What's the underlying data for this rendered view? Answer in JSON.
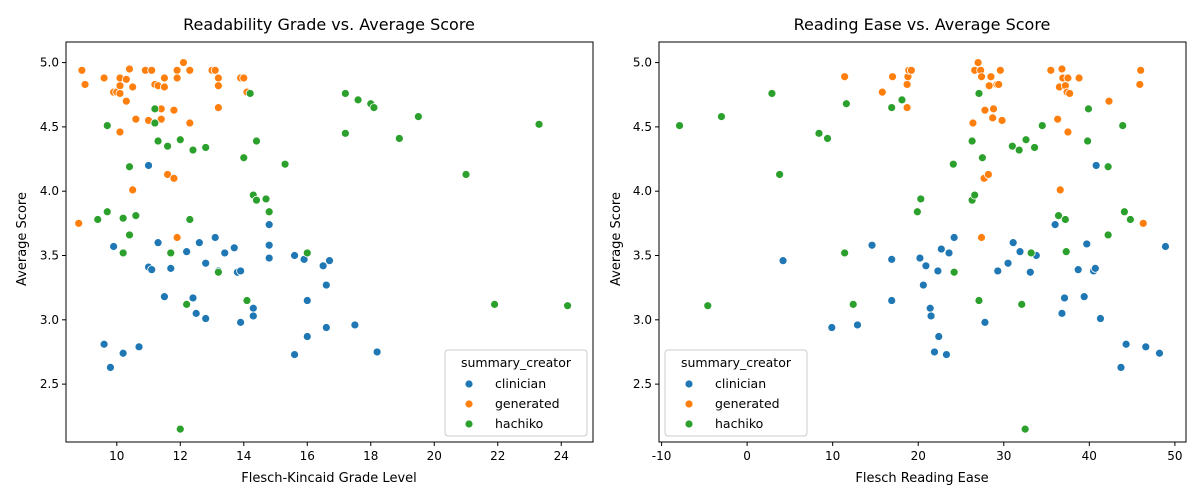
{
  "colors": {
    "clinician": "#1f77b4",
    "generated": "#ff7f0e",
    "hachiko": "#2ca02c"
  },
  "chart_data": [
    {
      "type": "scatter",
      "title": "Readability Grade vs. Average Score",
      "xlabel": "Flesch-Kincaid Grade Level",
      "ylabel": "Average Score",
      "xlim": [
        8.4,
        25.0
      ],
      "ylim": [
        2.05,
        5.16
      ],
      "xticks": [
        10,
        12,
        14,
        16,
        18,
        20,
        22,
        24
      ],
      "yticks": [
        2.5,
        3.0,
        3.5,
        4.0,
        4.5,
        5.0
      ],
      "grid": false,
      "legend": {
        "title": "summary_creator",
        "position": "lower-right"
      },
      "series": [
        {
          "name": "clinician",
          "points": [
            [
              9.6,
              2.81
            ],
            [
              9.8,
              2.63
            ],
            [
              9.9,
              3.57
            ],
            [
              10.2,
              2.74
            ],
            [
              10.7,
              2.79
            ],
            [
              11.0,
              4.2
            ],
            [
              11.0,
              3.41
            ],
            [
              11.1,
              3.39
            ],
            [
              11.3,
              3.6
            ],
            [
              11.5,
              3.18
            ],
            [
              11.7,
              3.4
            ],
            [
              12.2,
              3.53
            ],
            [
              12.4,
              3.17
            ],
            [
              12.5,
              3.05
            ],
            [
              12.6,
              3.6
            ],
            [
              12.8,
              3.44
            ],
            [
              12.8,
              3.01
            ],
            [
              13.1,
              3.64
            ],
            [
              13.2,
              3.38
            ],
            [
              13.4,
              3.52
            ],
            [
              13.7,
              3.56
            ],
            [
              13.8,
              3.37
            ],
            [
              13.9,
              3.38
            ],
            [
              13.9,
              2.98
            ],
            [
              14.3,
              3.09
            ],
            [
              14.3,
              3.03
            ],
            [
              14.8,
              3.74
            ],
            [
              14.8,
              3.58
            ],
            [
              14.8,
              3.48
            ],
            [
              15.6,
              3.5
            ],
            [
              15.6,
              2.73
            ],
            [
              15.9,
              3.47
            ],
            [
              16.0,
              3.15
            ],
            [
              16.0,
              2.87
            ],
            [
              16.5,
              3.42
            ],
            [
              16.6,
              3.27
            ],
            [
              16.6,
              2.94
            ],
            [
              16.7,
              3.46
            ],
            [
              17.5,
              2.96
            ],
            [
              18.2,
              2.75
            ]
          ]
        },
        {
          "name": "generated",
          "points": [
            [
              8.8,
              3.75
            ],
            [
              8.9,
              4.94
            ],
            [
              9.0,
              4.83
            ],
            [
              9.6,
              4.88
            ],
            [
              9.9,
              4.77
            ],
            [
              10.0,
              4.77
            ],
            [
              10.1,
              4.88
            ],
            [
              10.1,
              4.82
            ],
            [
              10.1,
              4.76
            ],
            [
              10.1,
              4.46
            ],
            [
              10.3,
              4.87
            ],
            [
              10.3,
              4.7
            ],
            [
              10.4,
              4.95
            ],
            [
              10.5,
              4.81
            ],
            [
              10.5,
              4.01
            ],
            [
              10.6,
              4.56
            ],
            [
              10.9,
              4.94
            ],
            [
              11.0,
              4.55
            ],
            [
              11.1,
              4.94
            ],
            [
              11.2,
              4.83
            ],
            [
              11.3,
              4.82
            ],
            [
              11.4,
              4.64
            ],
            [
              11.4,
              4.56
            ],
            [
              11.5,
              4.88
            ],
            [
              11.5,
              4.81
            ],
            [
              11.6,
              4.13
            ],
            [
              11.8,
              4.63
            ],
            [
              11.8,
              4.1
            ],
            [
              11.9,
              4.94
            ],
            [
              11.9,
              4.88
            ],
            [
              11.9,
              3.64
            ],
            [
              12.1,
              5.0
            ],
            [
              12.3,
              4.94
            ],
            [
              12.3,
              4.53
            ],
            [
              13.0,
              4.94
            ],
            [
              13.1,
              4.94
            ],
            [
              13.2,
              4.88
            ],
            [
              13.2,
              4.82
            ],
            [
              13.2,
              4.65
            ],
            [
              13.9,
              4.88
            ],
            [
              14.0,
              4.88
            ],
            [
              14.1,
              4.77
            ]
          ]
        },
        {
          "name": "hachiko",
          "points": [
            [
              9.4,
              3.78
            ],
            [
              9.7,
              4.51
            ],
            [
              9.7,
              3.84
            ],
            [
              10.2,
              3.79
            ],
            [
              10.2,
              3.52
            ],
            [
              10.4,
              4.19
            ],
            [
              10.4,
              3.66
            ],
            [
              10.6,
              3.81
            ],
            [
              11.2,
              4.64
            ],
            [
              11.2,
              4.53
            ],
            [
              11.3,
              4.39
            ],
            [
              11.6,
              4.35
            ],
            [
              11.7,
              3.52
            ],
            [
              12.0,
              4.4
            ],
            [
              12.0,
              2.15
            ],
            [
              12.2,
              3.12
            ],
            [
              12.3,
              3.78
            ],
            [
              12.4,
              4.32
            ],
            [
              12.8,
              4.34
            ],
            [
              13.2,
              3.37
            ],
            [
              14.0,
              4.26
            ],
            [
              14.1,
              3.15
            ],
            [
              14.2,
              4.76
            ],
            [
              14.3,
              3.97
            ],
            [
              14.4,
              4.39
            ],
            [
              14.4,
              3.93
            ],
            [
              14.7,
              3.94
            ],
            [
              14.8,
              3.84
            ],
            [
              15.3,
              4.21
            ],
            [
              16.0,
              3.52
            ],
            [
              17.2,
              4.76
            ],
            [
              17.2,
              4.45
            ],
            [
              17.6,
              4.71
            ],
            [
              18.0,
              4.68
            ],
            [
              18.1,
              4.65
            ],
            [
              18.9,
              4.41
            ],
            [
              19.5,
              4.58
            ],
            [
              21.0,
              4.13
            ],
            [
              21.9,
              3.12
            ],
            [
              23.3,
              4.52
            ],
            [
              24.2,
              3.11
            ]
          ]
        }
      ]
    },
    {
      "type": "scatter",
      "title": "Reading Ease vs. Average Score",
      "xlabel": "Flesch Reading Ease",
      "ylabel": "Average Score",
      "xlim": [
        -10.3,
        51.3
      ],
      "ylim": [
        2.05,
        5.16
      ],
      "xticks": [
        -10,
        0,
        10,
        20,
        30,
        40,
        50
      ],
      "yticks": [
        2.5,
        3.0,
        3.5,
        4.0,
        4.5,
        5.0
      ],
      "grid": false,
      "legend": {
        "title": "summary_creator",
        "position": "lower-left"
      },
      "series": [
        {
          "name": "clinician",
          "points": [
            [
              4.2,
              3.46
            ],
            [
              9.9,
              2.94
            ],
            [
              12.9,
              2.96
            ],
            [
              14.6,
              3.58
            ],
            [
              16.9,
              3.47
            ],
            [
              16.9,
              3.15
            ],
            [
              20.2,
              3.48
            ],
            [
              20.6,
              3.27
            ],
            [
              20.9,
              3.42
            ],
            [
              21.4,
              3.09
            ],
            [
              21.5,
              3.03
            ],
            [
              21.9,
              2.75
            ],
            [
              22.3,
              3.38
            ],
            [
              22.4,
              2.87
            ],
            [
              22.7,
              3.55
            ],
            [
              23.3,
              2.73
            ],
            [
              23.6,
              3.52
            ],
            [
              24.2,
              3.64
            ],
            [
              27.8,
              2.98
            ],
            [
              29.3,
              3.38
            ],
            [
              30.5,
              3.44
            ],
            [
              31.1,
              3.6
            ],
            [
              31.9,
              3.53
            ],
            [
              33.1,
              3.37
            ],
            [
              33.8,
              3.5
            ],
            [
              36.0,
              3.74
            ],
            [
              36.8,
              3.05
            ],
            [
              37.1,
              3.17
            ],
            [
              38.7,
              3.39
            ],
            [
              39.4,
              3.18
            ],
            [
              39.7,
              3.59
            ],
            [
              40.5,
              3.38
            ],
            [
              40.7,
              3.4
            ],
            [
              40.8,
              4.2
            ],
            [
              41.3,
              3.01
            ],
            [
              43.7,
              2.63
            ],
            [
              44.3,
              2.81
            ],
            [
              46.6,
              2.79
            ],
            [
              48.2,
              2.74
            ],
            [
              48.9,
              3.57
            ]
          ]
        },
        {
          "name": "generated",
          "points": [
            [
              11.4,
              4.89
            ],
            [
              15.8,
              4.77
            ],
            [
              17.0,
              4.89
            ],
            [
              18.7,
              4.65
            ],
            [
              18.7,
              4.83
            ],
            [
              18.8,
              4.89
            ],
            [
              18.9,
              4.94
            ],
            [
              19.2,
              4.94
            ],
            [
              26.4,
              4.53
            ],
            [
              26.6,
              4.94
            ],
            [
              27.0,
              5.0
            ],
            [
              27.3,
              4.94
            ],
            [
              27.4,
              3.64
            ],
            [
              27.4,
              4.89
            ],
            [
              27.7,
              4.1
            ],
            [
              27.8,
              4.63
            ],
            [
              28.2,
              4.13
            ],
            [
              28.3,
              4.82
            ],
            [
              28.5,
              4.89
            ],
            [
              28.7,
              4.57
            ],
            [
              28.8,
              4.64
            ],
            [
              29.2,
              4.83
            ],
            [
              29.4,
              4.83
            ],
            [
              29.6,
              4.94
            ],
            [
              29.8,
              4.55
            ],
            [
              35.5,
              4.94
            ],
            [
              36.3,
              4.56
            ],
            [
              36.5,
              4.81
            ],
            [
              36.6,
              4.01
            ],
            [
              36.8,
              4.95
            ],
            [
              36.9,
              4.88
            ],
            [
              37.2,
              4.82
            ],
            [
              37.4,
              4.77
            ],
            [
              37.5,
              4.46
            ],
            [
              37.5,
              4.88
            ],
            [
              37.7,
              4.76
            ],
            [
              38.8,
              4.88
            ],
            [
              42.3,
              4.7
            ],
            [
              45.9,
              4.83
            ],
            [
              46.0,
              4.94
            ],
            [
              46.3,
              3.75
            ]
          ]
        },
        {
          "name": "hachiko",
          "points": [
            [
              -7.9,
              4.51
            ],
            [
              -4.6,
              3.11
            ],
            [
              -3.0,
              4.58
            ],
            [
              2.9,
              4.76
            ],
            [
              3.8,
              4.13
            ],
            [
              8.4,
              4.45
            ],
            [
              9.4,
              4.41
            ],
            [
              11.4,
              3.52
            ],
            [
              11.6,
              4.68
            ],
            [
              12.4,
              3.12
            ],
            [
              16.9,
              4.65
            ],
            [
              18.1,
              4.71
            ],
            [
              19.9,
              3.84
            ],
            [
              20.3,
              3.94
            ],
            [
              24.1,
              4.21
            ],
            [
              24.2,
              3.37
            ],
            [
              26.3,
              4.39
            ],
            [
              26.3,
              3.93
            ],
            [
              26.6,
              3.97
            ],
            [
              27.1,
              4.76
            ],
            [
              27.1,
              3.15
            ],
            [
              27.5,
              4.26
            ],
            [
              31.0,
              4.35
            ],
            [
              31.8,
              4.32
            ],
            [
              32.1,
              3.12
            ],
            [
              32.5,
              2.15
            ],
            [
              32.6,
              4.4
            ],
            [
              33.2,
              3.52
            ],
            [
              33.6,
              4.34
            ],
            [
              34.5,
              4.51
            ],
            [
              36.4,
              3.81
            ],
            [
              37.2,
              3.78
            ],
            [
              37.3,
              3.53
            ],
            [
              39.8,
              4.39
            ],
            [
              39.9,
              4.64
            ],
            [
              42.2,
              4.19
            ],
            [
              42.2,
              3.66
            ],
            [
              43.9,
              4.51
            ],
            [
              44.1,
              3.84
            ],
            [
              44.8,
              3.78
            ]
          ]
        }
      ]
    }
  ]
}
